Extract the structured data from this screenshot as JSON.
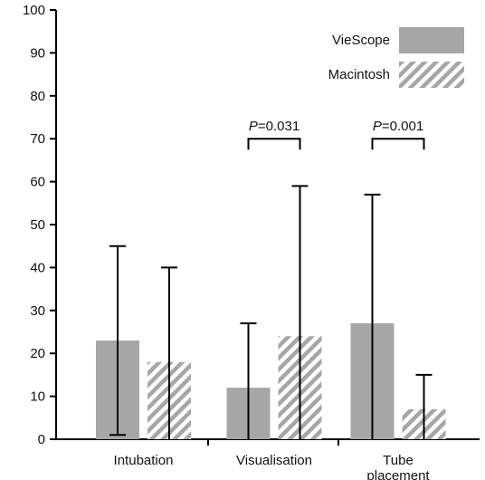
{
  "chart_data": {
    "type": "bar",
    "categories": [
      "Intubation",
      "Visualisation",
      "Tube placement"
    ],
    "category_lines": [
      [
        "Intubation"
      ],
      [
        "Visualisation"
      ],
      [
        "Tube",
        "placement"
      ]
    ],
    "ylim": [
      0,
      100
    ],
    "yticks": [
      0,
      10,
      20,
      30,
      40,
      50,
      60,
      70,
      80,
      90,
      100
    ],
    "series": [
      {
        "name": "VieScope",
        "values": [
          23,
          12,
          27
        ],
        "error_low": [
          1,
          0,
          0
        ],
        "error_high": [
          45,
          27,
          57
        ],
        "color": "#a6a6a6",
        "pattern": "solid"
      },
      {
        "name": "Macintosh",
        "values": [
          18,
          24,
          7
        ],
        "error_low": [
          0,
          0,
          0
        ],
        "error_high": [
          40,
          59,
          15
        ],
        "color": "#a6a6a6",
        "pattern": "hatched"
      }
    ],
    "annotations": [
      {
        "category_index": 1,
        "p_letter": "P",
        "p_text": "=0.031",
        "y": 70
      },
      {
        "category_index": 2,
        "p_letter": "P",
        "p_text": "=0.001",
        "y": 70
      }
    ],
    "legend_position": "top-right",
    "grid": false,
    "title": "",
    "xlabel": "",
    "ylabel": ""
  }
}
